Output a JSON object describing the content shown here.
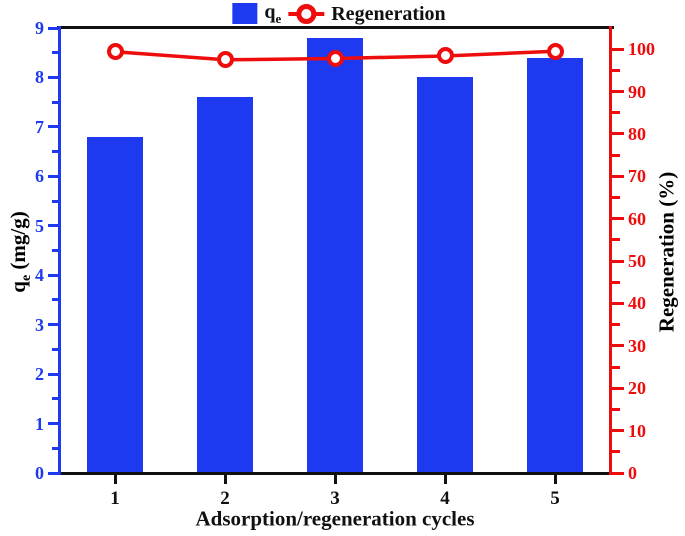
{
  "figure": {
    "legend": {
      "qe_main": "q",
      "qe_sub": "e",
      "regeneration": "Regeneration"
    },
    "axis_titles": {
      "left_main": "q",
      "left_sub": "e",
      "left_rest": " (mg/g)",
      "right": "Regeneration (%)",
      "bottom": "Adsorption/regeneration cycles"
    },
    "colors": {
      "bar_blue": "#1d3af0",
      "line_red": "#ee0d0d",
      "axis_black": "#111111"
    }
  },
  "chart_data": {
    "type": "bar",
    "title": "",
    "categories": [
      1,
      2,
      3,
      4,
      5
    ],
    "series": [
      {
        "name": "qe",
        "type": "bar",
        "axis": "left",
        "values": [
          6.8,
          7.6,
          8.8,
          8.0,
          8.4
        ],
        "color": "#1d3af0"
      },
      {
        "name": "Regeneration",
        "type": "line",
        "axis": "right",
        "marker": "open-circle",
        "values": [
          99.4,
          97.5,
          97.8,
          98.4,
          99.5
        ],
        "color": "#ee0d0d"
      }
    ],
    "xlabel": "Adsorption/regeneration cycles",
    "ylabel_left": "qe (mg/g)",
    "ylabel_right": "Regeneration (%)",
    "xlim": [
      0.5,
      5.5
    ],
    "ylim_left": [
      0,
      9
    ],
    "ylim_right": [
      0,
      105
    ],
    "left_tick_labels": [
      "0",
      "1",
      "2",
      "3",
      "4",
      "5",
      "6",
      "7",
      "8",
      "9"
    ],
    "right_tick_labels": [
      "0",
      "10",
      "20",
      "30",
      "40",
      "50",
      "60",
      "70",
      "80",
      "90",
      "100"
    ],
    "x_tick_labels": [
      "1",
      "2",
      "3",
      "4",
      "5"
    ],
    "left_major_step": 1,
    "left_minor_step": 0.5,
    "right_major_step": 10,
    "right_minor_step": 5,
    "grid": false,
    "legend_position": "top-center"
  }
}
